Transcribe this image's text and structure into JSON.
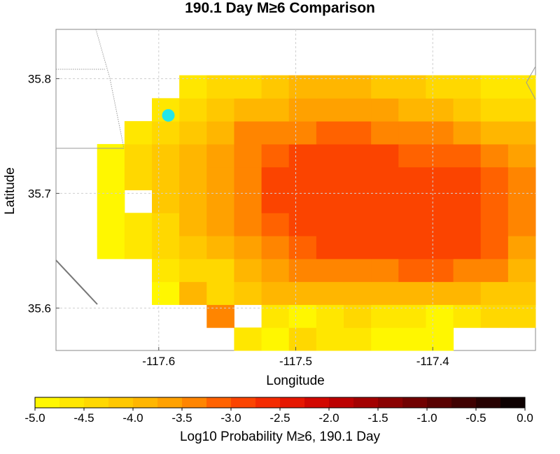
{
  "chart_data": {
    "type": "heatmap",
    "title": "190.1 Day M≥6 Comparison",
    "xlabel": "Longitude",
    "ylabel": "Latitude",
    "xlim": [
      -117.675,
      -117.325
    ],
    "ylim": [
      35.563,
      35.843
    ],
    "x_ticks": [
      -117.6,
      -117.5,
      -117.4
    ],
    "x_tick_labels": [
      "-117.6",
      "-117.5",
      "-117.4"
    ],
    "y_ticks": [
      35.6,
      35.7,
      35.8
    ],
    "y_tick_labels": [
      "35.6",
      "35.7",
      "35.8"
    ],
    "grid": true,
    "grid_origin": {
      "lon": -117.665,
      "lat": 35.563
    },
    "cell_size": {
      "dlon": 0.02,
      "dlat": 0.02
    },
    "cells_note": "rows from south to north; each value is Log10 probability; null = no data",
    "rows": [
      [
        null,
        null,
        null,
        null,
        null,
        null,
        -4.6,
        -4.8,
        -4.4,
        -4.6,
        -4.6,
        -4.8,
        -5.0,
        -4.8,
        null,
        null,
        null,
        null,
        null,
        null,
        null,
        null,
        null,
        null,
        null
      ],
      [
        null,
        null,
        null,
        null,
        null,
        -3.3,
        null,
        -4.6,
        -4.8,
        -4.6,
        -4.4,
        -4.6,
        -4.7,
        -4.8,
        -4.6,
        -4.4,
        -4.4,
        null,
        null,
        null,
        null,
        null,
        null,
        null,
        null
      ],
      [
        null,
        null,
        null,
        -4.9,
        -3.8,
        -4.4,
        -4.2,
        -4.0,
        -4.0,
        -4.0,
        -4.0,
        -4.0,
        -4.0,
        -4.0,
        -4.0,
        -4.2,
        -4.2,
        -4.2,
        -4.2,
        null,
        null,
        null,
        null,
        null,
        null
      ],
      [
        null,
        null,
        null,
        -4.6,
        -4.4,
        -4.4,
        -3.8,
        -3.6,
        -3.5,
        -3.5,
        -3.3,
        -3.3,
        -3.1,
        -3.1,
        -3.3,
        -3.5,
        -4.0,
        -4.4,
        -4.6,
        -4.7,
        -4.9,
        null,
        null,
        null,
        null
      ],
      [
        null,
        -4.9,
        -4.7,
        -4.5,
        -4.2,
        -3.8,
        -3.6,
        -3.4,
        -3.2,
        -3.0,
        -3.0,
        -3.0,
        -3.0,
        -3.0,
        -3.0,
        -3.2,
        -3.6,
        -4.0,
        -4.3,
        -4.5,
        -4.7,
        null,
        null,
        null,
        null
      ],
      [
        null,
        -4.9,
        -4.6,
        -4.3,
        -4.0,
        -3.7,
        -3.4,
        -3.2,
        -3.0,
        -3.0,
        -3.0,
        -3.0,
        -3.0,
        -3.0,
        -3.0,
        -3.2,
        -3.5,
        -3.9,
        -4.2,
        -4.4,
        -4.6,
        -4.8,
        null,
        null,
        null
      ],
      [
        null,
        -4.9,
        null,
        -4.2,
        -3.9,
        -3.6,
        -3.3,
        -3.0,
        -3.0,
        -3.0,
        -3.0,
        -3.0,
        -3.0,
        -3.0,
        -3.0,
        -3.2,
        -3.5,
        -3.8,
        -4.1,
        -4.4,
        -4.6,
        -4.8,
        null,
        null,
        null
      ],
      [
        null,
        -4.8,
        -4.5,
        -4.2,
        -3.9,
        -3.6,
        -3.3,
        -3.0,
        -3.0,
        -3.0,
        -3.0,
        -3.0,
        -3.0,
        -3.0,
        -3.0,
        -3.2,
        -3.5,
        -3.8,
        -4.1,
        -4.4,
        -4.6,
        -4.9,
        null,
        null,
        null
      ],
      [
        null,
        -4.8,
        -4.5,
        -4.2,
        -3.9,
        -3.6,
        -3.4,
        -3.1,
        -3.0,
        -3.0,
        -3.0,
        -3.0,
        -3.1,
        -3.1,
        -3.2,
        -3.4,
        -3.6,
        -3.9,
        -4.1,
        -4.4,
        -4.6,
        -4.8,
        null,
        null,
        null
      ],
      [
        null,
        null,
        -4.7,
        -4.3,
        -4.1,
        -3.8,
        -3.5,
        -3.4,
        -3.3,
        -3.2,
        -3.2,
        -3.3,
        -3.3,
        -3.5,
        -3.7,
        -3.8,
        -4.0,
        -4.2,
        -4.4,
        -4.6,
        -4.7,
        null,
        null,
        null,
        null
      ],
      [
        null,
        null,
        null,
        -4.6,
        -4.4,
        -4.2,
        -4.0,
        -3.8,
        -3.6,
        -3.6,
        -3.6,
        -3.7,
        -3.9,
        -4.0,
        -4.2,
        -4.3,
        -4.5,
        -4.6,
        -4.7,
        -4.8,
        null,
        null,
        null,
        null,
        null
      ],
      [
        null,
        null,
        null,
        null,
        -4.7,
        -4.5,
        -4.3,
        -4.1,
        -4.0,
        -4.0,
        -4.0,
        -4.1,
        -4.2,
        -4.3,
        -4.5,
        -4.6,
        -4.7,
        -4.8,
        null,
        null,
        null,
        null,
        null,
        null,
        null
      ]
    ],
    "colorbar": {
      "label": "Log10 Probability M≥6, 190.1 Day",
      "range": [
        -5.0,
        0.0
      ],
      "ticks": [
        "-5.0",
        "-4.5",
        "-4.0",
        "-3.5",
        "-3.0",
        "-2.5",
        "-2.0",
        "-1.5",
        "-1.0",
        "-0.5",
        "0.0"
      ],
      "steps": 20
    },
    "marker": {
      "lon": -117.593,
      "lat": 35.768,
      "color": "#25e6e6"
    }
  }
}
